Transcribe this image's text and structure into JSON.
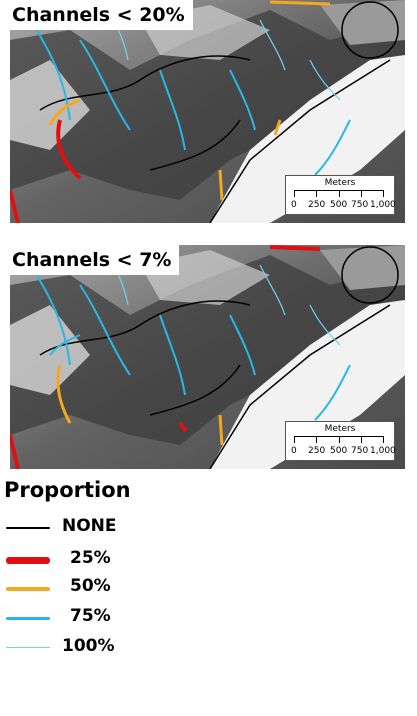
{
  "panels": [
    {
      "title": "Channels < 20%"
    },
    {
      "title": "Channels < 7%"
    }
  ],
  "scale": {
    "unit": "Meters",
    "ticks": [
      "0",
      "250",
      "500",
      "750",
      "1,000"
    ]
  },
  "legend": {
    "title": "Proportion",
    "items": [
      {
        "label": "NONE",
        "color": "#000000"
      },
      {
        "label": "25%",
        "color": "#e01010"
      },
      {
        "label": "50%",
        "color": "#f3a81f"
      },
      {
        "label": "75%",
        "color": "#27b8e6"
      },
      {
        "label": "100%",
        "color": "#6fd3f2"
      }
    ]
  }
}
